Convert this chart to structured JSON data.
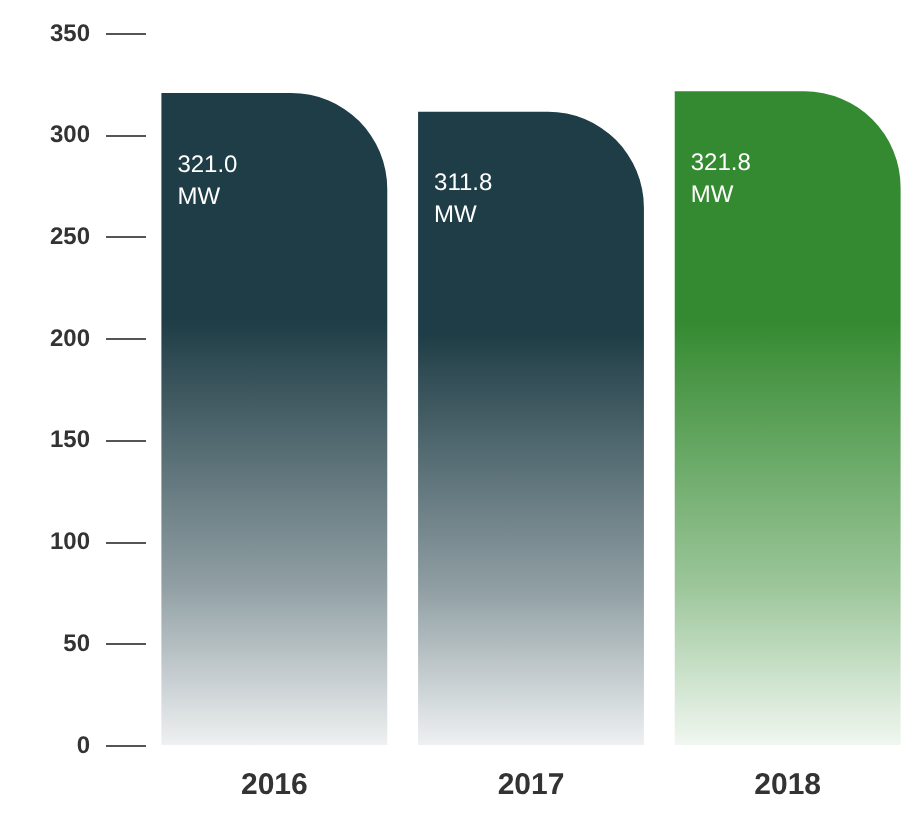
{
  "chart_data": {
    "type": "bar",
    "categories": [
      "2016",
      "2017",
      "2018"
    ],
    "values": [
      321.0,
      311.8,
      321.8
    ],
    "colors": [
      "#1f3d46",
      "#1f3d46",
      "#348a30"
    ],
    "value_labels": [
      "321.0 MW",
      "311.8 MW",
      "321.8 MW"
    ],
    "ylim": [
      0,
      350
    ],
    "yticks": [
      0,
      50,
      100,
      150,
      200,
      250,
      300,
      350
    ]
  }
}
